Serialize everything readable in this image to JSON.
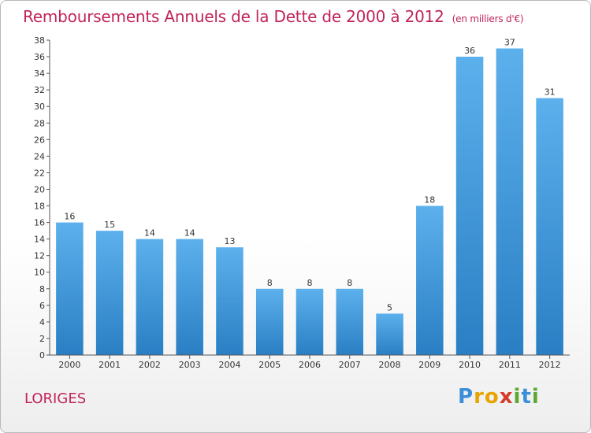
{
  "title": "Remboursements Annuels de la Dette de 2000 à 2012",
  "unit": "(en milliers d'€)",
  "commune": "LORIGES",
  "logo": {
    "letters": [
      "P",
      "r",
      "o",
      "x",
      "i",
      "t",
      "i"
    ],
    "colors": [
      "#3a8fd8",
      "#e8a400",
      "#e8a400",
      "#d63a2a",
      "#5aa832",
      "#3a8fd8",
      "#5aa832"
    ]
  },
  "colors": {
    "accent": "#c0245c",
    "bar_light": "#5cb0ec",
    "bar_dark": "#2a7fc4"
  },
  "chart_data": {
    "type": "bar",
    "categories": [
      "2000",
      "2001",
      "2002",
      "2003",
      "2004",
      "2005",
      "2006",
      "2007",
      "2008",
      "2009",
      "2010",
      "2011",
      "2012"
    ],
    "values": [
      16,
      15,
      14,
      14,
      13,
      8,
      8,
      8,
      5,
      18,
      36,
      37,
      31
    ],
    "title": "Remboursements Annuels de la Dette de 2000 à 2012",
    "xlabel": "",
    "ylabel": "",
    "ylim": [
      0,
      38
    ],
    "yticks": [
      0,
      2,
      4,
      6,
      8,
      10,
      12,
      14,
      16,
      18,
      20,
      22,
      24,
      26,
      28,
      30,
      32,
      34,
      36,
      38
    ],
    "grid": false,
    "legend": "none"
  }
}
